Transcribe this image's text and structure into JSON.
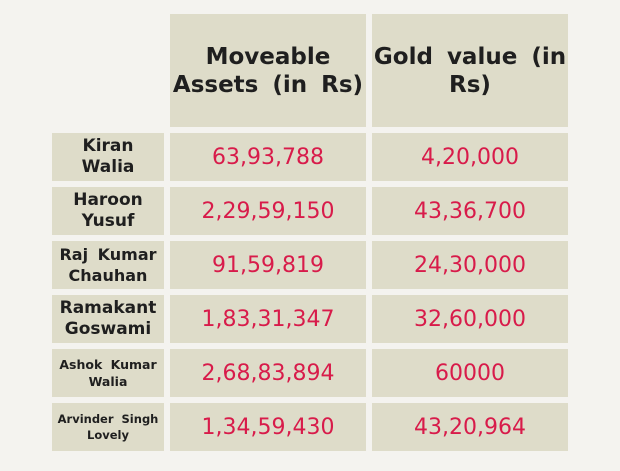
{
  "columns": [
    "Moveable\nAssets  (in Rs)",
    "Gold  value  (in\nRs)"
  ],
  "rows": [
    {
      "name": "Kiran\nWalia",
      "assets": "63,93,788",
      "gold": "4,20,000"
    },
    {
      "name": "Haroon\nYusuf",
      "assets": "2,29,59,150",
      "gold": "43,36,700"
    },
    {
      "name": "Raj  Kumar\nChauhan",
      "assets": "91,59,819",
      "gold": "24,30,000"
    },
    {
      "name": "Ramakant\nGoswami",
      "assets": "1,83,31,347",
      "gold": "32,60,000"
    },
    {
      "name": "Ashok  Kumar\nWalia",
      "assets": "2,68,83,894",
      "gold": "60000"
    },
    {
      "name": "Arvinder  Singh\nLovely",
      "assets": "1,34,59,430",
      "gold": "43,20,964"
    }
  ]
}
